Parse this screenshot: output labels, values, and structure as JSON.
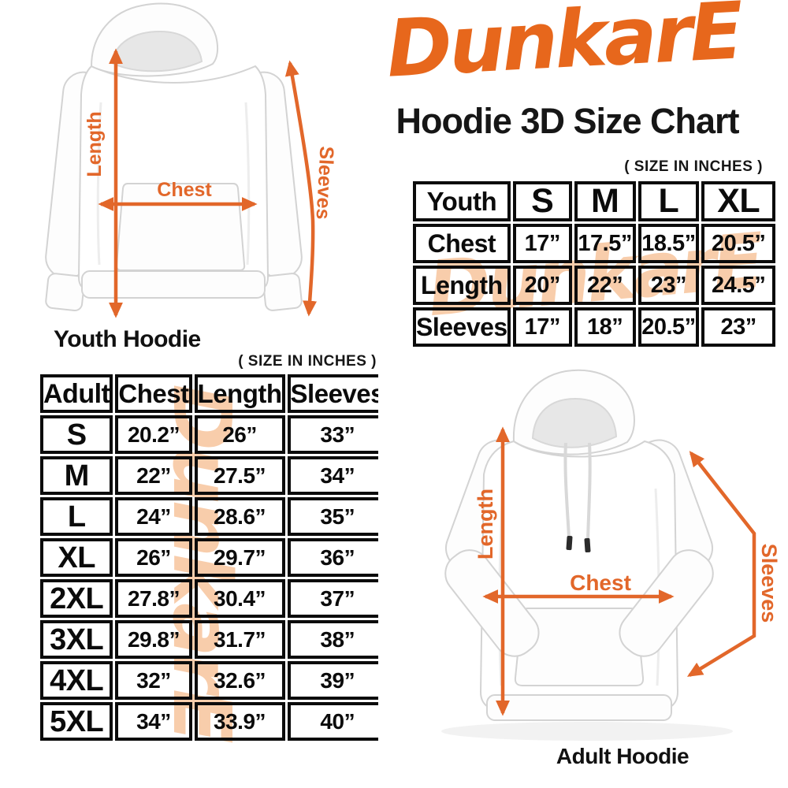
{
  "colors": {
    "brand_orange": "#E7671C",
    "arrow_orange": "#E2672A",
    "watermark_peach": "#F8CDAB",
    "text_black": "#0b0b0b"
  },
  "header": {
    "logo_text": "DunkarE",
    "title": "Hoodie 3D Size Chart"
  },
  "size_note": "( SIZE IN INCHES )",
  "watermark_text": "DunkarE",
  "youth_figure": {
    "caption": "Youth Hoodie",
    "length_label": "Length",
    "chest_label": "Chest",
    "sleeves_label": "Sleeves"
  },
  "adult_figure": {
    "caption": "Adult Hoodie",
    "length_label": "Length",
    "chest_label": "Chest",
    "sleeves_label": "Sleeves"
  },
  "youth_table": {
    "columns": [
      "Youth",
      "S",
      "M",
      "L",
      "XL"
    ],
    "rows": [
      {
        "label": "Chest",
        "values": [
          "17”",
          "17.5”",
          "18.5”",
          "20.5”"
        ]
      },
      {
        "label": "Length",
        "values": [
          "20”",
          "22”",
          "23”",
          "24.5”"
        ]
      },
      {
        "label": "Sleeves",
        "values": [
          "17”",
          "18”",
          "20.5”",
          "23”"
        ]
      }
    ]
  },
  "adult_table": {
    "columns": [
      "Adult",
      "Chest",
      "Length",
      "Sleeves"
    ],
    "rows": [
      {
        "label": "S",
        "values": [
          "20.2”",
          "26”",
          "33”"
        ]
      },
      {
        "label": "M",
        "values": [
          "22”",
          "27.5”",
          "34”"
        ]
      },
      {
        "label": "L",
        "values": [
          "24”",
          "28.6”",
          "35”"
        ]
      },
      {
        "label": "XL",
        "values": [
          "26”",
          "29.7”",
          "36”"
        ]
      },
      {
        "label": "2XL",
        "values": [
          "27.8”",
          "30.4”",
          "37”"
        ]
      },
      {
        "label": "3XL",
        "values": [
          "29.8”",
          "31.7”",
          "38”"
        ]
      },
      {
        "label": "4XL",
        "values": [
          "32”",
          "32.6”",
          "39”"
        ]
      },
      {
        "label": "5XL",
        "values": [
          "34”",
          "33.9”",
          "40”"
        ]
      }
    ]
  }
}
